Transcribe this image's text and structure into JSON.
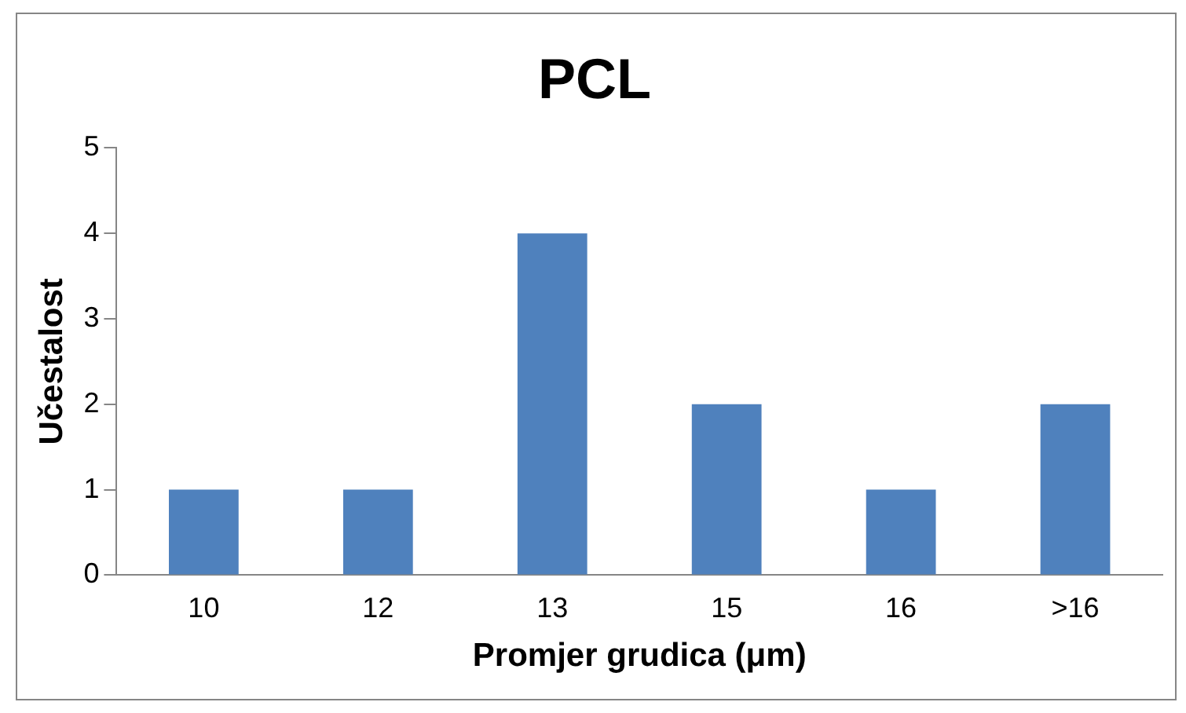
{
  "chart_data": {
    "type": "bar",
    "title": "PCL",
    "xlabel": "Promjer grudica (μm)",
    "ylabel": "Učestalost",
    "categories": [
      "10",
      "12",
      "13",
      "15",
      "16",
      ">16"
    ],
    "values": [
      1,
      1,
      4,
      2,
      1,
      2
    ],
    "color": "#4f81bd",
    "ylim": [
      0,
      5
    ],
    "yticks": [
      0,
      1,
      2,
      3,
      4,
      5
    ],
    "grid": false,
    "legend": false
  }
}
